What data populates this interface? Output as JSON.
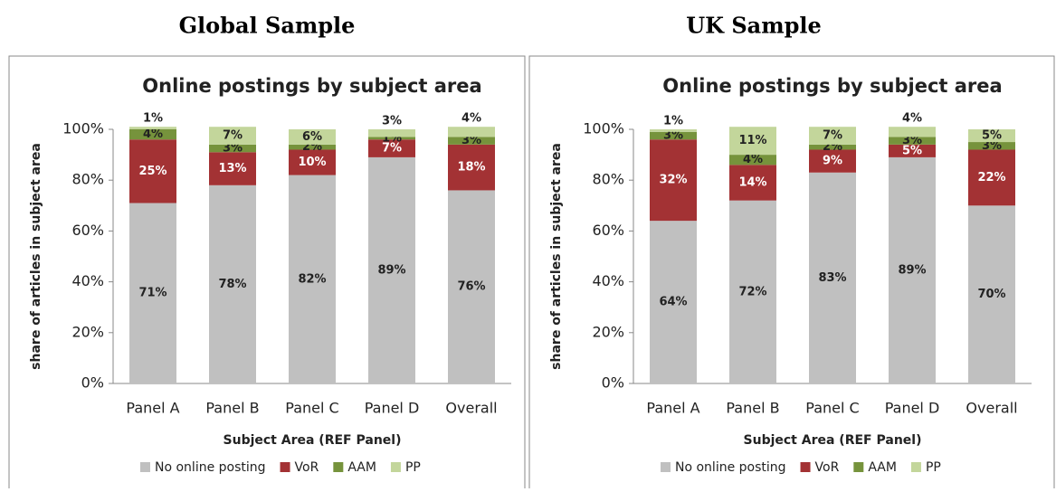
{
  "headings": [
    "Global Sample",
    "UK Sample"
  ],
  "chart_data": [
    {
      "type": "stacked_bar",
      "title": "Online postings by subject area",
      "x_label": "Subject Area (REF Panel)",
      "y_label": "share of articles in subject area",
      "categories": [
        "Panel A",
        "Panel B",
        "Panel C",
        "Panel D",
        "Overall"
      ],
      "series": [
        {
          "name": "No online posting",
          "color": "#c0c0c0",
          "values": [
            71,
            78,
            82,
            89,
            76
          ],
          "value_labels": [
            "71%",
            "78%",
            "82%",
            "89%",
            "76%"
          ]
        },
        {
          "name": "VoR",
          "color": "#a33234",
          "values": [
            25,
            13,
            10,
            7,
            18
          ],
          "value_labels": [
            "25%",
            "13%",
            "10%",
            "7%",
            "18%"
          ]
        },
        {
          "name": "AAM",
          "color": "#76933c",
          "values": [
            4,
            3,
            2,
            1,
            3
          ],
          "value_labels": [
            "4%",
            "3%",
            "2%",
            "1%",
            "3%"
          ]
        },
        {
          "name": "PP",
          "color": "#c3d69b",
          "values": [
            1,
            7,
            6,
            3,
            4
          ],
          "value_labels": [
            "1%",
            "7%",
            "6%",
            "3%",
            "4%"
          ]
        }
      ],
      "ylim": [
        0,
        100
      ],
      "yticks": [
        {
          "value": 0,
          "label": "0%"
        },
        {
          "value": 20,
          "label": "20%"
        },
        {
          "value": 40,
          "label": "40%"
        },
        {
          "value": 60,
          "label": "60%"
        },
        {
          "value": 80,
          "label": "80%"
        },
        {
          "value": 100,
          "label": "100%"
        }
      ],
      "legend": "bottom"
    },
    {
      "type": "stacked_bar",
      "title": "Online postings by subject area",
      "x_label": "Subject Area (REF Panel)",
      "y_label": "share of articles in subject area",
      "categories": [
        "Panel A",
        "Panel B",
        "Panel C",
        "Panel D",
        "Overall"
      ],
      "series": [
        {
          "name": "No online posting",
          "color": "#c0c0c0",
          "values": [
            64,
            72,
            83,
            89,
            70
          ],
          "value_labels": [
            "64%",
            "72%",
            "83%",
            "89%",
            "70%"
          ]
        },
        {
          "name": "VoR",
          "color": "#a33234",
          "values": [
            32,
            14,
            9,
            5,
            22
          ],
          "value_labels": [
            "32%",
            "14%",
            "9%",
            "5%",
            "22%"
          ]
        },
        {
          "name": "AAM",
          "color": "#76933c",
          "values": [
            3,
            4,
            2,
            3,
            3
          ],
          "value_labels": [
            "3%",
            "4%",
            "2%",
            "3%",
            "3%"
          ]
        },
        {
          "name": "PP",
          "color": "#c3d69b",
          "values": [
            1,
            11,
            7,
            4,
            5
          ],
          "value_labels": [
            "1%",
            "11%",
            "7%",
            "4%",
            "5%"
          ]
        }
      ],
      "ylim": [
        0,
        100
      ],
      "yticks": [
        {
          "value": 0,
          "label": "0%"
        },
        {
          "value": 20,
          "label": "20%"
        },
        {
          "value": 40,
          "label": "40%"
        },
        {
          "value": 60,
          "label": "60%"
        },
        {
          "value": 80,
          "label": "80%"
        },
        {
          "value": 100,
          "label": "100%"
        }
      ],
      "legend": "bottom"
    }
  ]
}
